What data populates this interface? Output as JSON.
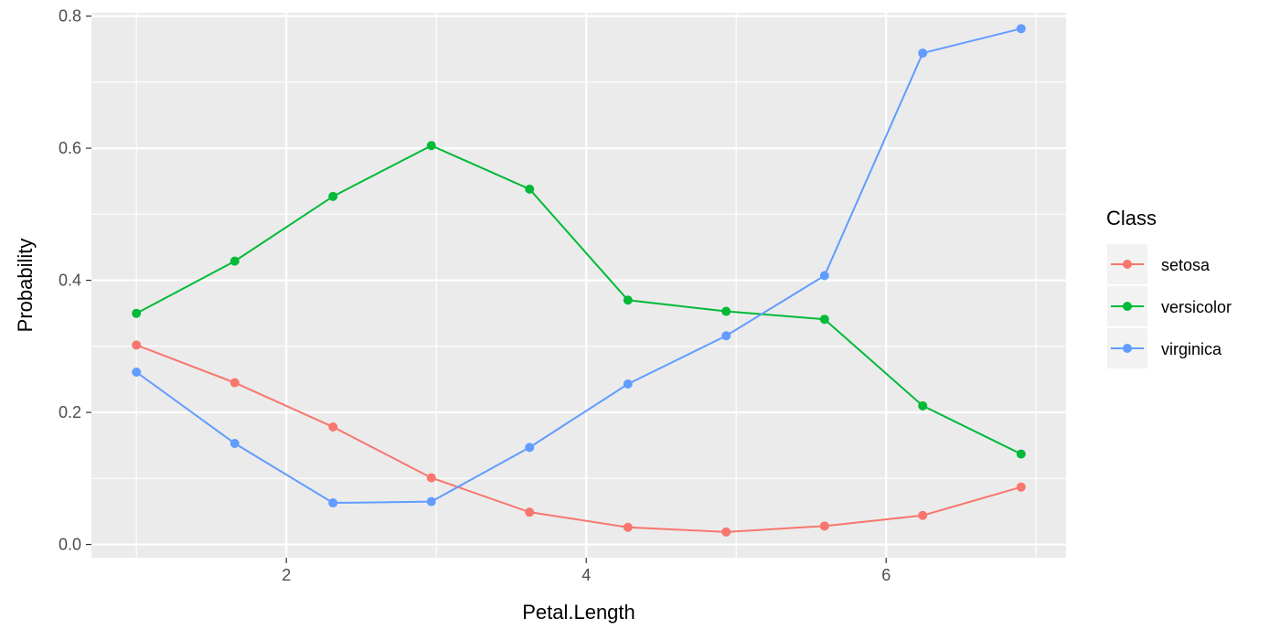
{
  "chart_data": {
    "type": "line",
    "xlabel": "Petal.Length",
    "ylabel": "Probability",
    "xlim": [
      0.7,
      7.2
    ],
    "ylim": [
      -0.02,
      0.805
    ],
    "x_ticks": [
      2,
      4,
      6
    ],
    "x_tick_labels": [
      "2",
      "4",
      "6"
    ],
    "y_ticks": [
      0,
      0.2,
      0.4,
      0.6,
      0.8
    ],
    "y_tick_labels": [
      "0.0",
      "0.2",
      "0.4",
      "0.6",
      "0.8"
    ],
    "grid": true,
    "legend": {
      "title": "Class",
      "position": "right"
    },
    "x": [
      1.0,
      1.656,
      2.311,
      2.967,
      3.622,
      4.278,
      4.933,
      5.589,
      6.244,
      6.9
    ],
    "series": [
      {
        "name": "setosa",
        "color": "#F8766D",
        "values": [
          0.302,
          0.245,
          0.178,
          0.101,
          0.049,
          0.026,
          0.019,
          0.028,
          0.044,
          0.087
        ]
      },
      {
        "name": "versicolor",
        "color": "#00BA38",
        "values": [
          0.35,
          0.429,
          0.527,
          0.604,
          0.538,
          0.37,
          0.353,
          0.341,
          0.21,
          0.137
        ]
      },
      {
        "name": "virginica",
        "color": "#619CFF",
        "values": [
          0.261,
          0.153,
          0.063,
          0.065,
          0.147,
          0.243,
          0.316,
          0.407,
          0.744,
          0.781
        ]
      }
    ]
  }
}
